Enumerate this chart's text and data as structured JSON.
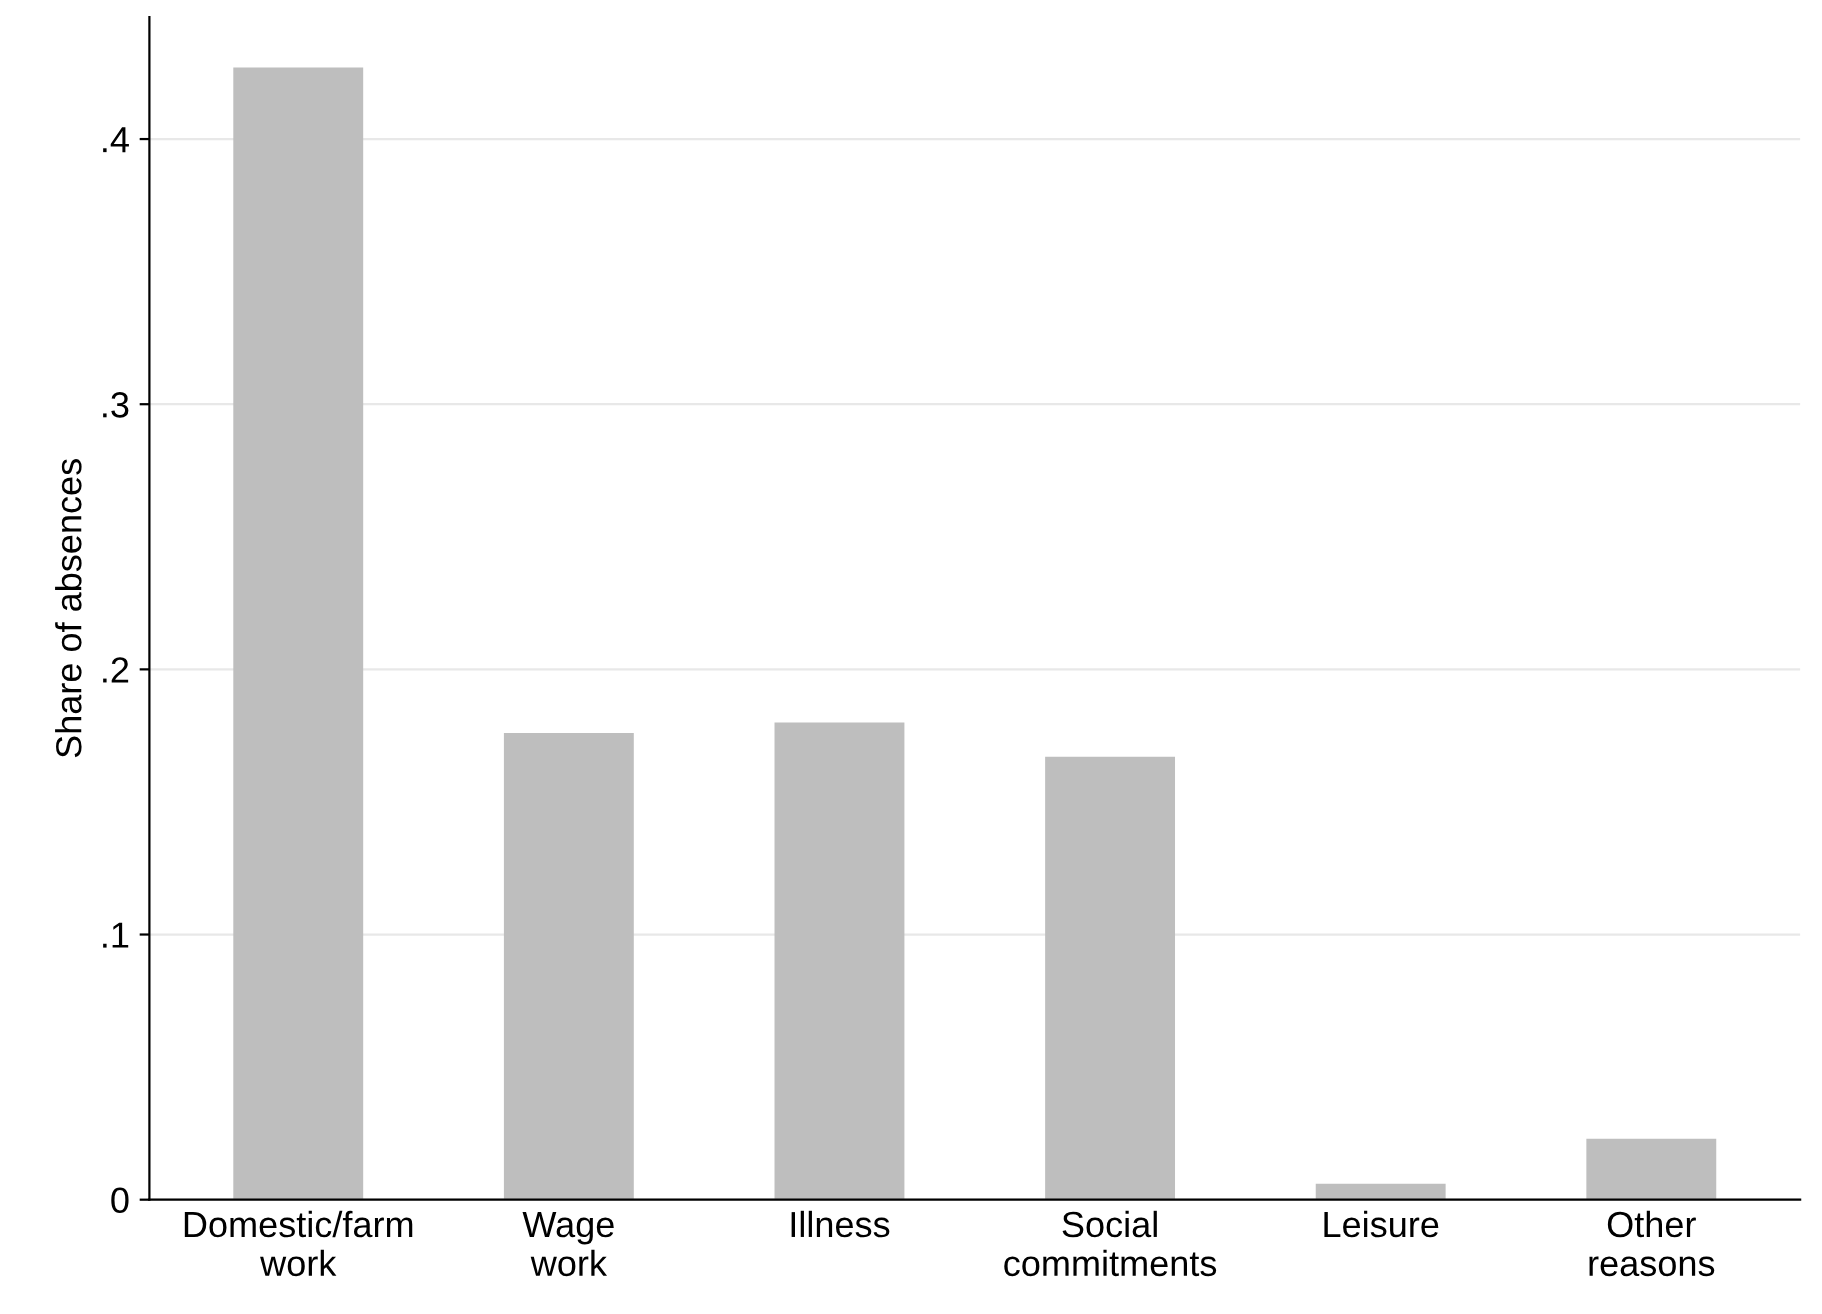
{
  "chart_data": {
    "type": "bar",
    "ylabel": "Share of absences",
    "categories": [
      "Domestic/farm\nwork",
      "Wage\nwork",
      "Illness",
      "Social\ncommitments",
      "Leisure",
      "Other\nreasons"
    ],
    "values": [
      0.427,
      0.176,
      0.18,
      0.167,
      0.006,
      0.023
    ],
    "color": "#bebebe",
    "ylim": [
      0,
      0.446
    ],
    "yticks": [
      {
        "value": 0,
        "label": "0"
      },
      {
        "value": 0.1,
        "label": ".1"
      },
      {
        "value": 0.2,
        "label": ".2"
      },
      {
        "value": 0.3,
        "label": ".3"
      },
      {
        "value": 0.4,
        "label": ".4"
      }
    ],
    "grid": "y",
    "legend": false
  }
}
